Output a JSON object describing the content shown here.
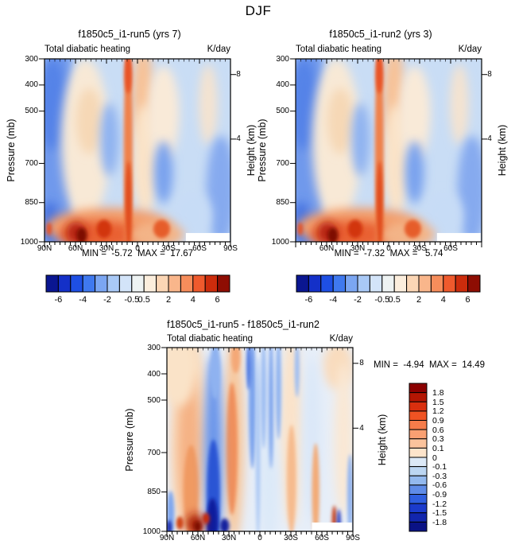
{
  "chart_data": {
    "type": "heatmap",
    "suptitle": "DJF",
    "description": "Zonal-mean total diabatic heating (K/day) latitude-pressure cross sections for two model runs and their difference, DJF season",
    "y_axis": {
      "label": "Pressure (mb)",
      "ticks": [
        300,
        400,
        500,
        700,
        850,
        1000
      ],
      "range": [
        300,
        1000
      ]
    },
    "height_axis": {
      "label": "Height (km)",
      "ticks": [
        {
          "label": "8",
          "pressure": 360
        },
        {
          "label": "4",
          "pressure": 607
        }
      ]
    },
    "x_axis": {
      "range_deg": [
        90,
        -90
      ],
      "major_step_deg": 30,
      "minor_step_deg": 5
    },
    "colorbar_top": {
      "orientation": "horizontal",
      "units": "K/day",
      "levels": [
        -6,
        -5,
        -4,
        -3,
        -2,
        -1,
        -0.5,
        0.5,
        1,
        2,
        3,
        4,
        5,
        6
      ],
      "tick_labels": [
        "-6",
        "-4",
        "-2",
        "-0.5",
        "0.5",
        "2",
        "4",
        "6"
      ],
      "tick_positions": [
        1,
        3,
        5,
        7,
        8,
        10,
        12,
        14
      ],
      "colors": [
        "#0a1691",
        "#1430c8",
        "#1e4fe4",
        "#3f79ef",
        "#7ba6f2",
        "#a9c9f6",
        "#d3e4f9",
        "#eef3f3",
        "#fceedd",
        "#fbd6b5",
        "#f9b68b",
        "#f68d5b",
        "#ef5a2d",
        "#cc2c0c",
        "#8e0d03"
      ]
    },
    "colorbar_diff": {
      "orientation": "vertical",
      "units": "K/day",
      "levels": [
        -1.8,
        -1.5,
        -1.2,
        -0.9,
        -0.6,
        -0.3,
        -0.1,
        0,
        0.1,
        0.3,
        0.6,
        0.9,
        1.2,
        1.5,
        1.8
      ],
      "tick_labels": [
        "1.8",
        "1.5",
        "1.2",
        "0.9",
        "0.6",
        "0.3",
        "0.1",
        "0",
        "-0.1",
        "-0.3",
        "-0.6",
        "-0.9",
        "-1.2",
        "-1.5",
        "-1.8"
      ],
      "colors_top_to_bottom": [
        "#8b0000",
        "#b41603",
        "#d92f0e",
        "#f05323",
        "#f67c4a",
        "#f9a072",
        "#fbc39c",
        "#fde4cb",
        "#dce9f7",
        "#bcd6f2",
        "#93b9ee",
        "#5f8ce8",
        "#2f5fe0",
        "#1b3bcc",
        "#1226ad",
        "#0a1285"
      ]
    },
    "panels": [
      {
        "title": "f1850c5_i1-run5 (yrs 7)",
        "subtitle_left": "Total diabatic heating",
        "units": "K/day",
        "min": -5.72,
        "max": 17.67,
        "minmax_text": "MIN =  -5.72  MAX =  17.67",
        "field": "mean",
        "colorbar": "top",
        "x_ticks": {
          "degs": [
            90,
            60,
            30,
            0,
            -30,
            -60,
            -90
          ],
          "labels": [
            "90N",
            "60N",
            "30N",
            "0",
            "30S",
            "60S",
            "90S"
          ]
        }
      },
      {
        "title": "f1850c5_i1-run2 (yrs 3)",
        "subtitle_left": "Total diabatic heating",
        "units": "K/day",
        "min": -7.32,
        "max": 5.74,
        "minmax_text": "MIN =  -7.32  MAX =   5.74",
        "field": "mean",
        "colorbar": "top",
        "x_ticks": {
          "degs": [
            60,
            30,
            0,
            -30,
            -60
          ],
          "labels": [
            "60N",
            "30N",
            "0",
            "30S",
            "60S"
          ]
        }
      },
      {
        "title": "f1850c5_i1-run5 - f1850c5_i1-run2",
        "subtitle_left": "Total diabatic heating",
        "units": "K/day",
        "min": -4.94,
        "max": 14.49,
        "minmax_text": "MIN =  -4.94  MAX =  14.49",
        "field": "diff",
        "colorbar": "diff",
        "x_ticks": {
          "degs": [
            90,
            60,
            30,
            0,
            -30,
            -60,
            -90
          ],
          "labels": [
            "90N",
            "60N",
            "30N",
            "0",
            "30S",
            "60S",
            "90S"
          ]
        }
      }
    ],
    "fields": {
      "mean": {
        "base": "#c9ddf5",
        "blobs": [
          [
            "e",
            0.07,
            0.45,
            0.115,
            0.62,
            "#6f99ec",
            "s"
          ],
          [
            "e",
            0.045,
            0.25,
            0.075,
            0.25,
            "#5583e8",
            "s"
          ],
          [
            "e",
            0.03,
            0.9,
            0.055,
            0.12,
            "#4a76e2",
            "s"
          ],
          [
            "e",
            0.22,
            0.45,
            0.13,
            0.45,
            "#f8e9d6",
            "s"
          ],
          [
            "e",
            0.24,
            0.34,
            0.07,
            0.18,
            "#f6d8b6",
            "s"
          ],
          [
            "e",
            0.35,
            0.44,
            0.05,
            0.2,
            "#8fb3f1",
            "s"
          ],
          [
            "e",
            0.53,
            0.2,
            0.06,
            0.26,
            "#f7c298",
            "s"
          ],
          [
            "e",
            0.54,
            0.55,
            0.07,
            0.3,
            "#fae3c8",
            "s"
          ],
          [
            "e",
            0.64,
            0.3,
            0.085,
            0.26,
            "#f9ead8",
            "s"
          ],
          [
            "e",
            0.88,
            0.25,
            0.05,
            0.22,
            "#f4e3d0",
            "s"
          ],
          [
            "e",
            0.64,
            0.62,
            0.05,
            0.17,
            "#79a2ee",
            "s"
          ],
          [
            "e",
            0.95,
            0.72,
            0.08,
            0.3,
            "#86aaef",
            "s"
          ],
          [
            "e",
            0.8,
            0.85,
            0.1,
            0.12,
            "#c7dcf6",
            "s"
          ],
          [
            "e",
            0.35,
            0.92,
            0.34,
            0.105,
            "#f39e6c",
            "s"
          ],
          [
            "e",
            0.3,
            0.96,
            0.22,
            0.075,
            "#e96032",
            "s"
          ],
          [
            "e",
            0.6,
            0.96,
            0.15,
            0.07,
            "#f3b487",
            "s"
          ],
          [
            "e",
            0.45,
            0.5,
            0.024,
            0.58,
            "#ef814c",
            "t"
          ],
          [
            "e",
            0.45,
            0.08,
            0.02,
            0.11,
            "#e85325",
            "t"
          ],
          [
            "e",
            0.452,
            0.8,
            0.017,
            0.24,
            "#e04b1d",
            "t"
          ],
          [
            "e",
            0.17,
            0.95,
            0.05,
            0.06,
            "#b01a07",
            "s"
          ],
          [
            "e",
            0.2,
            0.965,
            0.028,
            0.042,
            "#7e0b02",
            "t"
          ],
          [
            "e",
            0.32,
            0.93,
            0.04,
            0.05,
            "#d2350f",
            "t"
          ],
          [
            "e",
            0.63,
            0.93,
            0.045,
            0.05,
            "#e65d2c",
            "t"
          ],
          [
            "e",
            0.025,
            0.93,
            0.015,
            0.035,
            "#e4572b",
            "t"
          ],
          [
            "r",
            0.76,
            0.952,
            0.235,
            0.048,
            "#ffffff"
          ]
        ]
      },
      "diff": {
        "base": "#e7eef8",
        "blobs": [
          [
            "e",
            0.12,
            0.5,
            0.105,
            0.58,
            "#f9d9ba",
            "s"
          ],
          [
            "e",
            0.12,
            0.55,
            0.06,
            0.42,
            "#f5b285",
            "s"
          ],
          [
            "e",
            0.13,
            0.78,
            0.04,
            0.25,
            "#f09a62",
            "t"
          ],
          [
            "e",
            0.06,
            0.12,
            0.1,
            0.2,
            "#fae3c8",
            "s"
          ],
          [
            "e",
            0.92,
            0.1,
            0.08,
            0.13,
            "#f9dcbd",
            "s"
          ],
          [
            "e",
            0.67,
            0.45,
            0.06,
            0.52,
            "#fae3ca",
            "s"
          ],
          [
            "e",
            0.95,
            0.5,
            0.05,
            0.42,
            "#fae8d4",
            "s"
          ],
          [
            "e",
            0.36,
            0.5,
            0.055,
            0.56,
            "#f7c79c",
            "s"
          ],
          [
            "e",
            0.35,
            0.55,
            0.03,
            0.36,
            "#f0905c",
            "t"
          ],
          [
            "e",
            0.37,
            0.05,
            0.025,
            0.09,
            "#f4a877",
            "t"
          ],
          [
            "e",
            0.25,
            0.6,
            0.05,
            0.56,
            "#6b95ea",
            "s"
          ],
          [
            "e",
            0.25,
            0.8,
            0.035,
            0.3,
            "#2c55d4",
            "t"
          ],
          [
            "e",
            0.245,
            0.95,
            0.03,
            0.13,
            "#0e1c9e",
            "t"
          ],
          [
            "e",
            0.26,
            0.12,
            0.028,
            0.16,
            "#8fb2f0",
            "t"
          ],
          [
            "e",
            0.55,
            0.75,
            0.05,
            0.32,
            "#dce9f8",
            "s"
          ],
          [
            "e",
            0.78,
            0.5,
            0.05,
            0.45,
            "#dbe8f8",
            "s"
          ],
          [
            "e",
            0.46,
            0.3,
            0.02,
            0.36,
            "#7da4ed",
            "t"
          ],
          [
            "e",
            0.44,
            0.1,
            0.012,
            0.13,
            "#4a74e0",
            "t"
          ],
          [
            "e",
            0.49,
            0.55,
            0.012,
            0.5,
            "#aac8f4",
            "t"
          ],
          [
            "e",
            0.52,
            0.25,
            0.015,
            0.3,
            "#9dbdf2",
            "t"
          ],
          [
            "e",
            0.56,
            0.3,
            0.013,
            0.36,
            "#7da4ed",
            "t"
          ],
          [
            "e",
            0.6,
            0.22,
            0.015,
            0.28,
            "#90b4f0",
            "t"
          ],
          [
            "e",
            0.67,
            0.72,
            0.025,
            0.3,
            "#f6bb8e",
            "t"
          ],
          [
            "e",
            0.7,
            0.12,
            0.013,
            0.15,
            "#9dbdf2",
            "t"
          ],
          [
            "e",
            0.8,
            0.78,
            0.02,
            0.26,
            "#f3aa76",
            "t"
          ],
          [
            "e",
            0.155,
            0.96,
            0.048,
            0.055,
            "#a31205",
            "s"
          ],
          [
            "e",
            0.165,
            0.975,
            0.02,
            0.03,
            "#7e0b02",
            "t"
          ],
          [
            "e",
            0.07,
            0.955,
            0.02,
            0.035,
            "#cf4419",
            "t"
          ],
          [
            "e",
            0.21,
            0.93,
            0.02,
            0.03,
            "#c62b0d",
            "t"
          ],
          [
            "e",
            0.31,
            0.97,
            0.025,
            0.04,
            "#13219e",
            "t"
          ],
          [
            "e",
            0.02,
            0.9,
            0.02,
            0.12,
            "#7ea6ee",
            "t"
          ],
          [
            "e",
            0.012,
            0.98,
            0.015,
            0.04,
            "#1b2fae",
            "t"
          ],
          [
            "e",
            0.9,
            0.94,
            0.012,
            0.08,
            "#c53a14",
            "t"
          ],
          [
            "e",
            0.925,
            0.95,
            0.01,
            0.07,
            "#2338c0",
            "t"
          ],
          [
            "e",
            0.985,
            0.8,
            0.015,
            0.22,
            "#8fb2f0",
            "t"
          ],
          [
            "r",
            0.78,
            0.952,
            0.215,
            0.048,
            "#ffffff"
          ]
        ]
      }
    }
  }
}
